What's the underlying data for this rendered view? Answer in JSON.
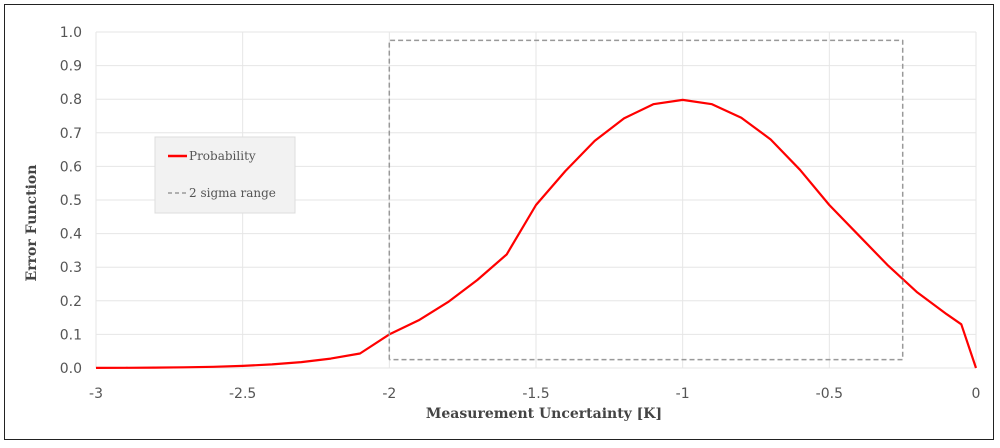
{
  "chart_data": {
    "type": "line",
    "title": "",
    "xlabel": "Measurement Uncertainty [K]",
    "ylabel": "Error Function",
    "xlim": [
      -3,
      0
    ],
    "ylim": [
      0,
      1.0
    ],
    "x_ticks": [
      -3,
      -2.5,
      -2,
      -1.5,
      -1,
      -0.5,
      0
    ],
    "x_tick_labels": [
      "-3",
      "-2.5",
      "-2",
      "-1.5",
      "-1",
      "-0.5",
      "0"
    ],
    "y_ticks": [
      0,
      0.1,
      0.2,
      0.3,
      0.4,
      0.5,
      0.6,
      0.7,
      0.8,
      0.9,
      1.0
    ],
    "y_tick_labels": [
      "0.0",
      "0.1",
      "0.2",
      "0.3",
      "0.4",
      "0.5",
      "0.6",
      "0.7",
      "0.8",
      "0.9",
      "1.0"
    ],
    "grid": true,
    "legend_position": "left",
    "series": [
      {
        "name": "Probability",
        "color": "#ff0000",
        "style": "solid",
        "x": [
          -3.0,
          -2.9,
          -2.8,
          -2.7,
          -2.6,
          -2.5,
          -2.4,
          -2.3,
          -2.2,
          -2.1,
          -2.0,
          -1.9,
          -1.8,
          -1.7,
          -1.6,
          -1.5,
          -1.4,
          -1.3,
          -1.2,
          -1.1,
          -1.0,
          -0.9,
          -0.8,
          -0.7,
          -0.6,
          -0.5,
          -0.4,
          -0.3,
          -0.2,
          -0.1,
          -0.05,
          0.0
        ],
        "y": [
          0.0003,
          0.0006,
          0.0011,
          0.002,
          0.0036,
          0.0063,
          0.0107,
          0.0176,
          0.028,
          0.0432,
          0.1,
          0.142,
          0.196,
          0.262,
          0.338,
          0.485,
          0.586,
          0.676,
          0.743,
          0.785,
          0.798,
          0.785,
          0.745,
          0.68,
          0.59,
          0.485,
          0.395,
          0.305,
          0.225,
          0.16,
          0.13,
          0.0
        ]
      },
      {
        "name": "2 sigma range",
        "color": "#999999",
        "style": "dashed",
        "x": [
          -2.0,
          -2.0,
          -0.25,
          -0.25,
          -2.0
        ],
        "y": [
          0.025,
          0.975,
          0.975,
          0.025,
          0.025
        ]
      }
    ]
  }
}
